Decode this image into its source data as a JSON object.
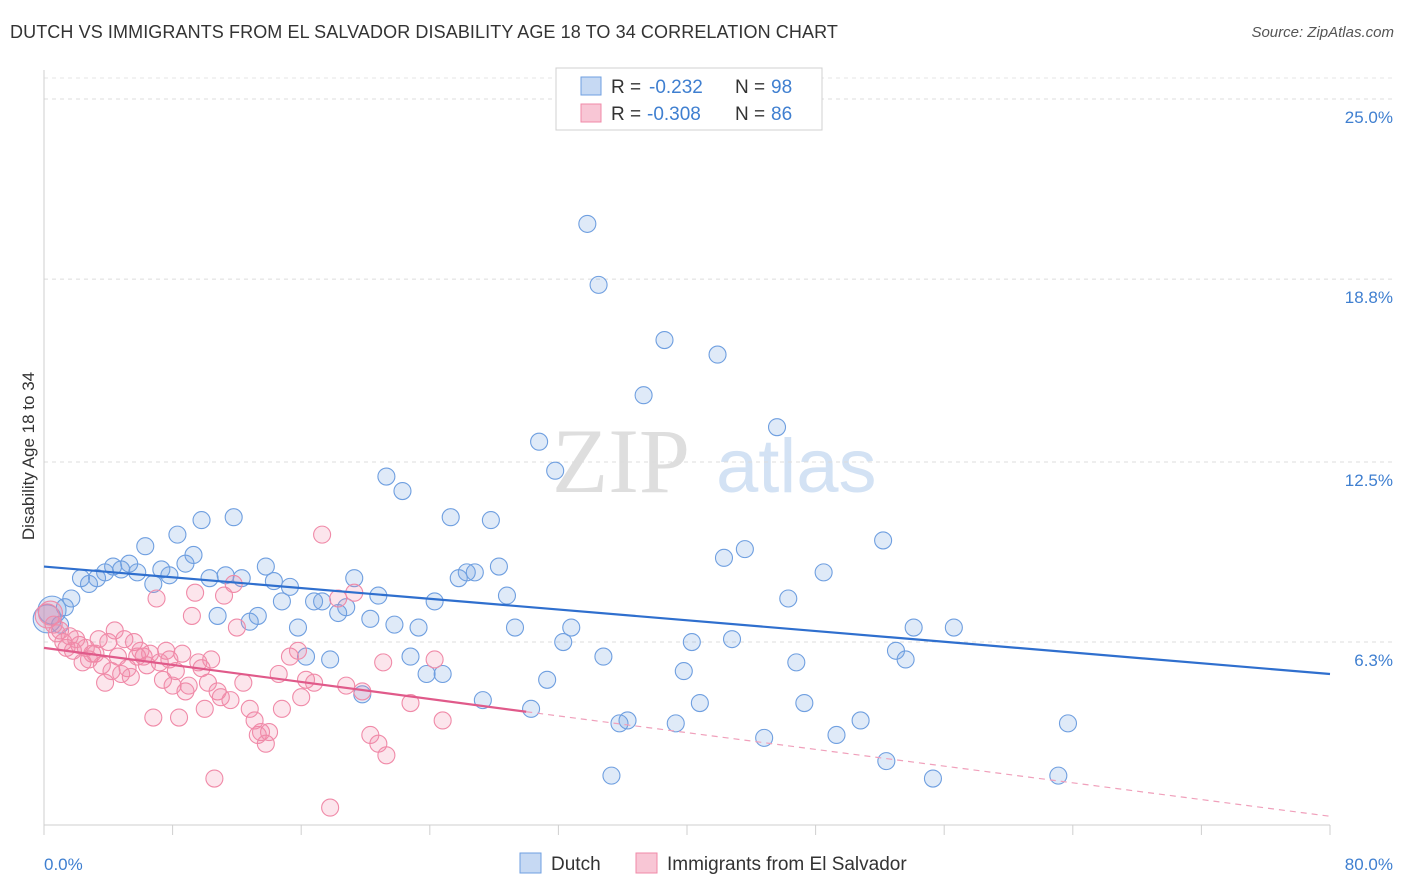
{
  "header": {
    "title": "DUTCH VS IMMIGRANTS FROM EL SALVADOR DISABILITY AGE 18 TO 34 CORRELATION CHART",
    "source": "Source: ZipAtlas.com"
  },
  "watermark": {
    "zip": "ZIP",
    "atlas": "atlas"
  },
  "legend": {
    "rows": [
      {
        "r_label": "R =",
        "r_value": "-0.232",
        "n_label": "N =",
        "n_value": "98"
      },
      {
        "r_label": "R =",
        "r_value": "-0.308",
        "n_label": "N =",
        "n_value": "86"
      }
    ]
  },
  "chart_data": {
    "type": "scatter",
    "ylabel": "Disability Age 18 to 34",
    "xlim": [
      0,
      80
    ],
    "ylim": [
      0,
      26
    ],
    "x_tick_labels": [
      "0.0%",
      "80.0%"
    ],
    "y_ticks": [
      {
        "value": 6.3,
        "label": "6.3%"
      },
      {
        "value": 12.5,
        "label": "12.5%"
      },
      {
        "value": 18.8,
        "label": "18.8%"
      },
      {
        "value": 25.0,
        "label": "25.0%"
      }
    ],
    "grid": "horizontal dashed",
    "legend_position": "top-center",
    "series": [
      {
        "name": "Dutch",
        "color": "#6f9fe0",
        "trend": {
          "x": [
            0,
            80
          ],
          "y": [
            8.9,
            5.2
          ],
          "color": "#2f6fce"
        },
        "points": [
          [
            0.2,
            7.1
          ],
          [
            0.5,
            7.4
          ],
          [
            1.0,
            6.9
          ],
          [
            1.3,
            7.5
          ],
          [
            1.7,
            7.8
          ],
          [
            2.3,
            8.5
          ],
          [
            2.8,
            8.3
          ],
          [
            3.3,
            8.5
          ],
          [
            3.8,
            8.7
          ],
          [
            4.3,
            8.9
          ],
          [
            4.8,
            8.8
          ],
          [
            5.3,
            9.0
          ],
          [
            5.8,
            8.7
          ],
          [
            6.3,
            9.6
          ],
          [
            6.8,
            8.3
          ],
          [
            7.3,
            8.8
          ],
          [
            7.8,
            8.6
          ],
          [
            8.3,
            10.0
          ],
          [
            8.8,
            9.0
          ],
          [
            9.3,
            9.3
          ],
          [
            9.8,
            10.5
          ],
          [
            10.3,
            8.5
          ],
          [
            10.8,
            7.2
          ],
          [
            11.3,
            8.6
          ],
          [
            11.8,
            10.6
          ],
          [
            12.3,
            8.5
          ],
          [
            12.8,
            7.0
          ],
          [
            13.3,
            7.2
          ],
          [
            13.8,
            8.9
          ],
          [
            14.3,
            8.4
          ],
          [
            14.8,
            7.7
          ],
          [
            15.3,
            8.2
          ],
          [
            15.8,
            6.8
          ],
          [
            16.3,
            5.8
          ],
          [
            16.8,
            7.7
          ],
          [
            17.3,
            7.7
          ],
          [
            17.8,
            5.7
          ],
          [
            18.3,
            7.3
          ],
          [
            18.8,
            7.5
          ],
          [
            19.3,
            8.5
          ],
          [
            19.8,
            4.5
          ],
          [
            20.3,
            7.1
          ],
          [
            20.8,
            7.9
          ],
          [
            21.3,
            12.0
          ],
          [
            21.8,
            6.9
          ],
          [
            22.3,
            11.5
          ],
          [
            22.8,
            5.8
          ],
          [
            23.3,
            6.8
          ],
          [
            23.8,
            5.2
          ],
          [
            24.3,
            7.7
          ],
          [
            24.8,
            5.2
          ],
          [
            25.3,
            10.6
          ],
          [
            25.8,
            8.5
          ],
          [
            26.3,
            8.7
          ],
          [
            26.8,
            8.7
          ],
          [
            27.3,
            4.3
          ],
          [
            27.8,
            10.5
          ],
          [
            28.3,
            8.9
          ],
          [
            28.8,
            7.9
          ],
          [
            29.3,
            6.8
          ],
          [
            30.3,
            4.0
          ],
          [
            30.8,
            13.2
          ],
          [
            31.3,
            5.0
          ],
          [
            31.8,
            12.2
          ],
          [
            32.3,
            6.3
          ],
          [
            32.8,
            6.8
          ],
          [
            33.8,
            20.7
          ],
          [
            34.5,
            18.6
          ],
          [
            34.8,
            5.8
          ],
          [
            35.3,
            1.7
          ],
          [
            35.8,
            3.5
          ],
          [
            36.3,
            3.6
          ],
          [
            37.3,
            14.8
          ],
          [
            38.6,
            16.7
          ],
          [
            39.3,
            3.5
          ],
          [
            39.8,
            5.3
          ],
          [
            40.3,
            6.3
          ],
          [
            40.8,
            4.2
          ],
          [
            41.9,
            16.2
          ],
          [
            42.3,
            9.2
          ],
          [
            42.8,
            6.4
          ],
          [
            43.6,
            9.5
          ],
          [
            44.8,
            3.0
          ],
          [
            45.6,
            13.7
          ],
          [
            46.3,
            7.8
          ],
          [
            46.8,
            5.6
          ],
          [
            47.3,
            4.2
          ],
          [
            48.5,
            8.7
          ],
          [
            49.3,
            3.1
          ],
          [
            50.8,
            3.6
          ],
          [
            52.2,
            9.8
          ],
          [
            52.4,
            2.2
          ],
          [
            53.0,
            6.0
          ],
          [
            53.6,
            5.7
          ],
          [
            54.1,
            6.8
          ],
          [
            55.3,
            1.6
          ],
          [
            56.6,
            6.8
          ],
          [
            63.1,
            1.7
          ],
          [
            63.7,
            3.5
          ]
        ]
      },
      {
        "name": "Immigrants from El Salvador",
        "color": "#f08aa8",
        "trend": {
          "x": [
            0,
            30
          ],
          "y": [
            6.1,
            3.9
          ],
          "color": "#e05a8a"
        },
        "trend_ext": {
          "x": [
            30,
            80
          ],
          "y": [
            3.9,
            0.3
          ]
        },
        "points": [
          [
            0.2,
            7.2
          ],
          [
            0.4,
            7.3
          ],
          [
            0.6,
            6.9
          ],
          [
            0.8,
            6.6
          ],
          [
            1.0,
            6.7
          ],
          [
            1.2,
            6.3
          ],
          [
            1.4,
            6.1
          ],
          [
            1.6,
            6.5
          ],
          [
            1.8,
            6.0
          ],
          [
            2.0,
            6.4
          ],
          [
            2.2,
            6.2
          ],
          [
            2.4,
            5.6
          ],
          [
            2.6,
            6.1
          ],
          [
            2.8,
            5.7
          ],
          [
            3.0,
            5.9
          ],
          [
            3.2,
            5.9
          ],
          [
            3.4,
            6.4
          ],
          [
            3.6,
            5.5
          ],
          [
            3.8,
            4.9
          ],
          [
            4.0,
            6.3
          ],
          [
            4.2,
            5.3
          ],
          [
            4.4,
            6.7
          ],
          [
            4.6,
            5.8
          ],
          [
            4.8,
            5.2
          ],
          [
            5.0,
            6.4
          ],
          [
            5.2,
            5.4
          ],
          [
            5.4,
            5.1
          ],
          [
            5.6,
            6.3
          ],
          [
            5.8,
            5.8
          ],
          [
            6.0,
            6.0
          ],
          [
            6.2,
            5.8
          ],
          [
            6.4,
            5.5
          ],
          [
            6.6,
            5.9
          ],
          [
            6.8,
            3.7
          ],
          [
            7.0,
            7.8
          ],
          [
            7.2,
            5.6
          ],
          [
            7.4,
            5.0
          ],
          [
            7.6,
            6.0
          ],
          [
            7.8,
            5.7
          ],
          [
            8.0,
            4.8
          ],
          [
            8.2,
            5.3
          ],
          [
            8.4,
            3.7
          ],
          [
            8.6,
            5.9
          ],
          [
            8.8,
            4.6
          ],
          [
            9.0,
            4.8
          ],
          [
            9.2,
            7.2
          ],
          [
            9.4,
            8.0
          ],
          [
            9.6,
            5.6
          ],
          [
            9.8,
            5.4
          ],
          [
            10.0,
            4.0
          ],
          [
            10.2,
            4.9
          ],
          [
            10.4,
            5.7
          ],
          [
            10.6,
            1.6
          ],
          [
            10.8,
            4.6
          ],
          [
            11.0,
            4.4
          ],
          [
            11.2,
            7.9
          ],
          [
            11.6,
            4.3
          ],
          [
            11.8,
            8.3
          ],
          [
            12.0,
            6.8
          ],
          [
            12.4,
            4.9
          ],
          [
            12.8,
            4.0
          ],
          [
            13.1,
            3.6
          ],
          [
            13.3,
            3.1
          ],
          [
            13.5,
            3.2
          ],
          [
            13.8,
            2.8
          ],
          [
            14.0,
            3.2
          ],
          [
            14.6,
            5.2
          ],
          [
            14.8,
            4.0
          ],
          [
            15.3,
            5.8
          ],
          [
            15.8,
            6.0
          ],
          [
            16.0,
            4.4
          ],
          [
            16.3,
            5.0
          ],
          [
            16.8,
            4.9
          ],
          [
            17.3,
            10.0
          ],
          [
            17.8,
            0.6
          ],
          [
            18.3,
            7.8
          ],
          [
            18.8,
            4.8
          ],
          [
            19.3,
            8.0
          ],
          [
            19.8,
            4.6
          ],
          [
            20.3,
            3.1
          ],
          [
            20.8,
            2.8
          ],
          [
            21.3,
            2.4
          ],
          [
            21.1,
            5.6
          ],
          [
            22.8,
            4.2
          ],
          [
            24.3,
            5.7
          ],
          [
            24.8,
            3.6
          ]
        ]
      }
    ]
  }
}
